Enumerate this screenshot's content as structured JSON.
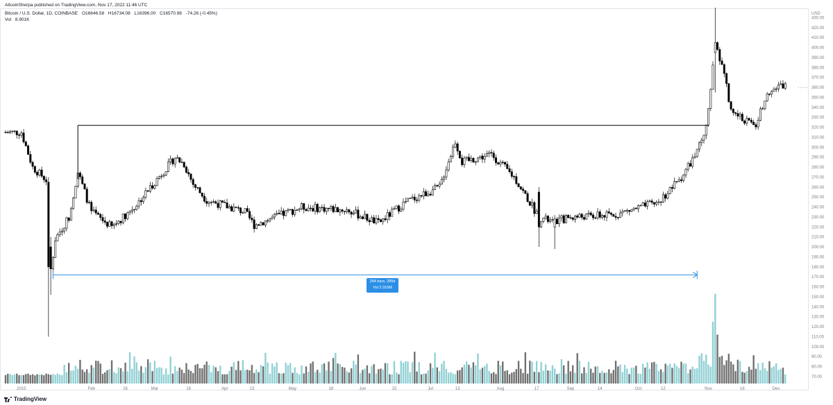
{
  "header": {
    "published": "AltcoinSherpa published on TradingView.com, Nov 17, 2022 11:46 UTC",
    "symbol": "Bitcoin / U.S. Dollar, 1D, COINBASE",
    "open": "O16646.58",
    "high": "H16734.08",
    "low": "L16396.00",
    "close": "C16570.98",
    "change": "-74.26 (-0.45%)",
    "vol_label": "Vol",
    "vol_value": "8.901K"
  },
  "footer": {
    "brand": "TradingView"
  },
  "measure": {
    "line1": "284 bars, 285d",
    "line2": "Vol 2.315M"
  },
  "colors": {
    "up_body": "#ffffff",
    "down_body": "#000000",
    "wick": "#000000",
    "vol_up": "#8fd0d4",
    "vol_down": "#6e6e6e",
    "measure": "#2b8fe6",
    "resistance": "#000000",
    "axis_text": "#787b86",
    "grid_border": "#e0e3eb"
  },
  "chart_data": {
    "type": "candlestick",
    "currency_label": "USD",
    "x_tick_labels": [
      "2015",
      "Feb",
      "16",
      "Mar",
      "16",
      "Apr",
      "13",
      "May",
      "18",
      "Jun",
      "15",
      "Jul",
      "13",
      "Aug",
      "17",
      "Sep",
      "14",
      "Oct",
      "12",
      "Nov",
      "16",
      "Dec"
    ],
    "y_ticks": [
      70,
      80,
      90,
      100,
      110,
      120,
      130,
      140,
      150,
      160,
      170,
      180,
      190,
      200,
      210,
      220,
      230,
      240,
      250,
      260,
      270,
      280,
      290,
      300,
      310,
      320,
      330,
      340,
      350,
      360,
      370,
      380,
      390,
      400,
      410,
      420,
      430
    ],
    "ylim": [
      63,
      438
    ],
    "last_price_marker": 360,
    "resistance_level": 322,
    "measure_range": {
      "from": "2015-01-15",
      "to": "2015-10-27",
      "bars": 284,
      "days": 285,
      "volume": "2.315M"
    },
    "anchor_points": [
      {
        "d": "2014-12-25",
        "p": 315
      },
      {
        "d": "2015-01-01",
        "p": 315
      },
      {
        "d": "2015-01-06",
        "p": 280
      },
      {
        "d": "2015-01-13",
        "p": 265
      },
      {
        "d": "2015-01-14",
        "p": 175
      },
      {
        "d": "2015-01-16",
        "p": 208
      },
      {
        "d": "2015-01-22",
        "p": 230
      },
      {
        "d": "2015-01-26",
        "p": 275
      },
      {
        "d": "2015-02-01",
        "p": 235
      },
      {
        "d": "2015-02-10",
        "p": 220
      },
      {
        "d": "2015-02-20",
        "p": 240
      },
      {
        "d": "2015-03-10",
        "p": 290
      },
      {
        "d": "2015-03-14",
        "p": 283
      },
      {
        "d": "2015-03-18",
        "p": 263
      },
      {
        "d": "2015-03-24",
        "p": 247
      },
      {
        "d": "2015-04-10",
        "p": 235
      },
      {
        "d": "2015-04-14",
        "p": 222
      },
      {
        "d": "2015-05-05",
        "p": 240
      },
      {
        "d": "2015-05-25",
        "p": 237
      },
      {
        "d": "2015-06-08",
        "p": 224
      },
      {
        "d": "2015-06-20",
        "p": 245
      },
      {
        "d": "2015-07-05",
        "p": 260
      },
      {
        "d": "2015-07-12",
        "p": 306
      },
      {
        "d": "2015-07-15",
        "p": 285
      },
      {
        "d": "2015-07-28",
        "p": 293
      },
      {
        "d": "2015-08-07",
        "p": 270
      },
      {
        "d": "2015-08-18",
        "p": 230
      },
      {
        "d": "2015-08-24",
        "p": 225
      },
      {
        "d": "2015-09-01",
        "p": 230
      },
      {
        "d": "2015-09-20",
        "p": 232
      },
      {
        "d": "2015-10-10",
        "p": 245
      },
      {
        "d": "2015-10-20",
        "p": 270
      },
      {
        "d": "2015-10-27",
        "p": 295
      },
      {
        "d": "2015-10-31",
        "p": 320
      },
      {
        "d": "2015-11-04",
        "p": 403
      },
      {
        "d": "2015-11-08",
        "p": 375
      },
      {
        "d": "2015-11-11",
        "p": 335
      },
      {
        "d": "2015-11-15",
        "p": 330
      },
      {
        "d": "2015-11-22",
        "p": 322
      },
      {
        "d": "2015-11-27",
        "p": 356
      },
      {
        "d": "2015-12-04",
        "p": 362
      }
    ]
  }
}
